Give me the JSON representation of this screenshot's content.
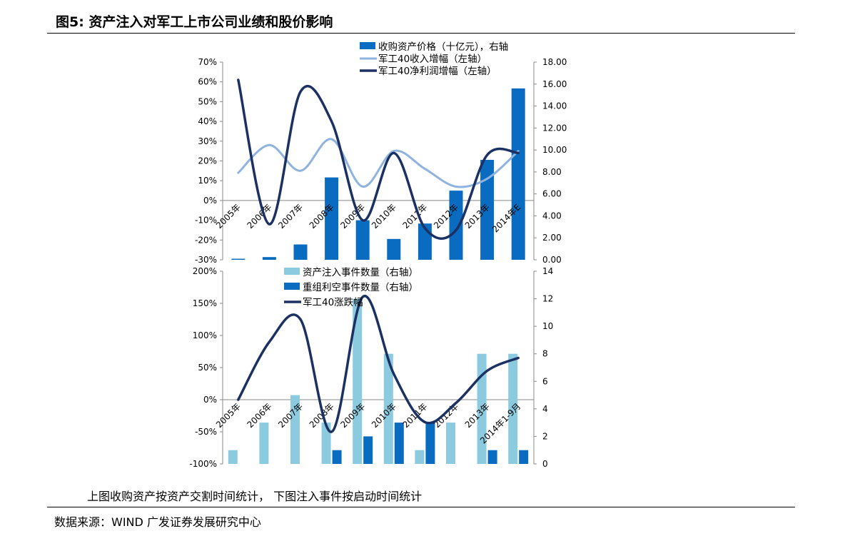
{
  "figure": {
    "title": "图5:  资产注入对军工上市公司业绩和股价影响",
    "note": "上图收购资产按资产交割时间统计，   下图注入事件按启动时间统计",
    "source": "数据来源：WIND    广发证券发展研究中心"
  },
  "colors": {
    "bar_dark": "#0a6cc0",
    "bar_light": "#8ccbdf",
    "line_light": "#8fb3df",
    "line_dark": "#1b3163"
  },
  "chart_data": [
    {
      "type": "bar",
      "categories": [
        "2005年",
        "2006年",
        "2007年",
        "2008年",
        "2009年",
        "2010年",
        "2011年",
        "2012年",
        "2013年",
        "2014年E"
      ],
      "left_axis": {
        "ticks": [
          "70%",
          "60%",
          "50%",
          "40%",
          "30%",
          "20%",
          "10%",
          "0%",
          "-10%",
          "-20%",
          "-30%"
        ],
        "ylim": [
          -30,
          70
        ]
      },
      "right_axis": {
        "ticks": [
          "18.00",
          "16.00",
          "14.00",
          "12.00",
          "10.00",
          "8.00",
          "6.00",
          "4.00",
          "2.00",
          "0.00"
        ],
        "ylim": [
          0,
          18
        ]
      },
      "series": [
        {
          "name": "收购资产价格（十亿元），右轴",
          "kind": "bar",
          "axis": "right",
          "values": [
            0.1,
            0.25,
            1.4,
            7.5,
            3.6,
            1.9,
            3.3,
            6.3,
            9.1,
            15.6
          ]
        },
        {
          "name": "军工40收入增幅（左轴）",
          "kind": "line",
          "axis": "left",
          "values": [
            14,
            28,
            15,
            31,
            7,
            25,
            16,
            7,
            11,
            25
          ]
        },
        {
          "name": "军工40净利润增幅（左轴）",
          "kind": "line",
          "axis": "left",
          "values": [
            61,
            -12,
            55,
            40,
            -10,
            24,
            -14,
            -15,
            23,
            24
          ]
        }
      ]
    },
    {
      "type": "bar",
      "categories": [
        "2005年",
        "2006年",
        "2007年",
        "2008年",
        "2009年",
        "2010年",
        "2011年",
        "2012年",
        "2013年",
        "2014年1-9月"
      ],
      "left_axis": {
        "ticks": [
          "200%",
          "150%",
          "100%",
          "50%",
          "0%",
          "-50%",
          "-100%"
        ],
        "ylim": [
          -100,
          200
        ]
      },
      "right_axis": {
        "ticks": [
          "14",
          "12",
          "10",
          "8",
          "6",
          "4",
          "2",
          "0"
        ],
        "ylim": [
          0,
          14
        ]
      },
      "series": [
        {
          "name": "资产注入事件数量（右轴）",
          "kind": "bar",
          "axis": "right",
          "values": [
            1,
            3,
            5,
            3,
            12,
            8,
            1,
            3,
            8,
            8
          ]
        },
        {
          "name": "重组利空事件数量（右轴）",
          "kind": "bar",
          "axis": "right",
          "values": [
            0,
            0,
            0,
            1,
            2,
            3,
            3,
            0,
            1,
            1
          ]
        },
        {
          "name": "军工40涨跌幅",
          "kind": "line",
          "axis": "left",
          "values": [
            0,
            90,
            125,
            -50,
            160,
            40,
            -35,
            -5,
            45,
            65
          ]
        }
      ]
    }
  ]
}
